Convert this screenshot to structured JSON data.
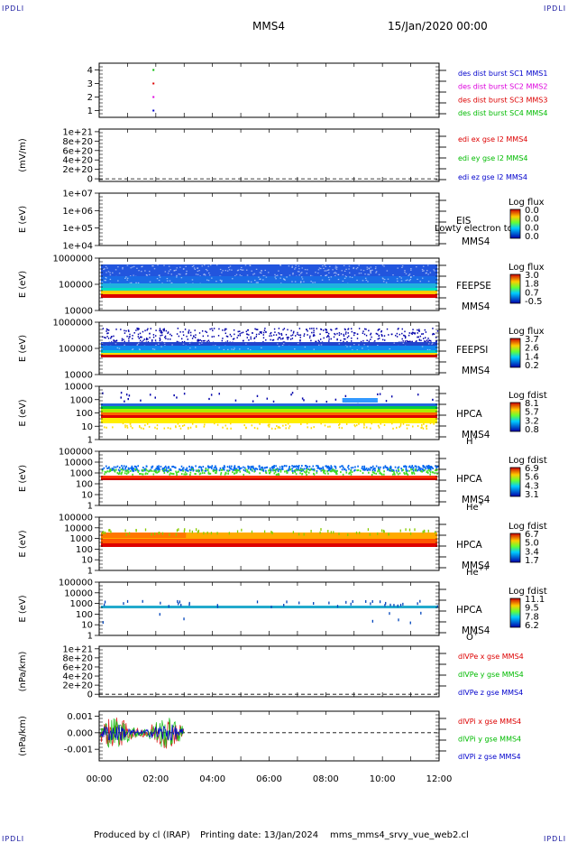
{
  "header": {
    "corner_label": "IPDLI",
    "spacecraft": "MMS4",
    "datetime": "15/Jan/2020 00:00"
  },
  "footer": {
    "produced_by": "Produced by cl (IRAP)",
    "printing_date": "Printing date: 13/Jan/2024",
    "file_name": "mms_mms4_srvy_vue_web2.cl"
  },
  "colors": {
    "red": "#dd0000",
    "magenta": "#dd00dd",
    "green": "#00bb00",
    "blue": "#0000cc"
  },
  "chart_data": [
    {
      "type": "scatter",
      "ylim": [
        0.5,
        4.5
      ],
      "yticks": [
        "1",
        "2",
        "3",
        "4"
      ],
      "series": [
        {
          "name": "des dist burst SC1 MMS1",
          "color": "#0000cc",
          "x": [
            "01:55"
          ],
          "y": [
            1
          ]
        },
        {
          "name": "des dist burst SC2 MMS2",
          "color": "#dd00dd",
          "x": [
            "01:55"
          ],
          "y": [
            2
          ]
        },
        {
          "name": "des dist burst SC3 MMS3",
          "color": "#dd0000",
          "x": [
            "01:55"
          ],
          "y": [
            3
          ]
        },
        {
          "name": "des dist burst SC4 MMS4",
          "color": "#00bb00",
          "x": [
            "01:55"
          ],
          "y": [
            4
          ]
        }
      ]
    },
    {
      "type": "line",
      "ylabel": "(mV/m)",
      "yticks": [
        "0",
        "2e+20",
        "4e+20",
        "6e+20",
        "8e+20",
        "1e+21"
      ],
      "zero_line": true,
      "series": [
        {
          "name": "edi ex gse l2 MMS4",
          "color": "#dd0000"
        },
        {
          "name": "edi ey gse l2 MMS4",
          "color": "#00bb00"
        },
        {
          "name": "edi ez gse l2 MMS4",
          "color": "#0000cc"
        }
      ]
    },
    {
      "type": "heatmap",
      "ylabel": "E (eV)",
      "yticks": [
        "1e+04",
        "1e+05",
        "1e+06",
        "1e+07"
      ],
      "scale": "log",
      "instrument": "EIS",
      "overlay_text": "Lowty electron to",
      "spacecraft": "MMS4",
      "colorbar_title": "Log flux",
      "colorbar_ticks": [
        "0.0",
        "0.0",
        "0.0",
        "0.0"
      ]
    },
    {
      "type": "heatmap",
      "ylabel": "E (eV)",
      "yticks": [
        "10000",
        "100000",
        "1000000"
      ],
      "scale": "log",
      "instrument": "FEEPSE",
      "spacecraft": "MMS4",
      "colorbar_title": "Log flux",
      "colorbar_ticks": [
        "3.0",
        "1.8",
        "0.7",
        "-0.5"
      ]
    },
    {
      "type": "heatmap",
      "ylabel": "E (eV)",
      "yticks": [
        "10000",
        "100000",
        "1000000"
      ],
      "scale": "log",
      "instrument": "FEEPSI",
      "spacecraft": "MMS4",
      "colorbar_title": "Log flux",
      "colorbar_ticks": [
        "3.7",
        "2.6",
        "1.4",
        "0.2"
      ]
    },
    {
      "type": "heatmap",
      "ylabel": "E (eV)",
      "yticks": [
        "1",
        "10",
        "100",
        "1000",
        "10000"
      ],
      "scale": "log",
      "instrument": "HPCA",
      "spacecraft": "MMS4",
      "species": "H",
      "species_sup": "+",
      "colorbar_title": "Log fdist",
      "colorbar_ticks": [
        "8.1",
        "5.7",
        "3.2",
        "0.8"
      ]
    },
    {
      "type": "heatmap",
      "ylabel": "E (eV)",
      "yticks": [
        "1",
        "10",
        "100",
        "1000",
        "10000",
        "100000"
      ],
      "scale": "log",
      "instrument": "HPCA",
      "spacecraft": "MMS4",
      "species": "He",
      "species_sup": "+",
      "colorbar_title": "Log fdist",
      "colorbar_ticks": [
        "6.9",
        "5.6",
        "4.3",
        "3.1"
      ]
    },
    {
      "type": "heatmap",
      "ylabel": "E (eV)",
      "yticks": [
        "1",
        "10",
        "100",
        "1000",
        "10000",
        "100000"
      ],
      "scale": "log",
      "instrument": "HPCA",
      "spacecraft": "MMS4",
      "species": "He",
      "species_sup": "++",
      "colorbar_title": "Log fdist",
      "colorbar_ticks": [
        "6.7",
        "5.0",
        "3.4",
        "1.7"
      ]
    },
    {
      "type": "heatmap",
      "ylabel": "E (eV)",
      "yticks": [
        "1",
        "10",
        "100",
        "1000",
        "10000",
        "100000"
      ],
      "scale": "log",
      "instrument": "HPCA",
      "spacecraft": "MMS4",
      "species": "O",
      "species_sup": "+",
      "colorbar_title": "Log fdist",
      "colorbar_ticks": [
        "11.1",
        "9.5",
        "7.8",
        "6.2"
      ]
    },
    {
      "type": "line",
      "ylabel": "(nPa/km)",
      "yticks": [
        "0",
        "2e+20",
        "4e+20",
        "6e+20",
        "8e+20",
        "1e+21"
      ],
      "zero_line": true,
      "series": [
        {
          "name": "dlVPe x gse MMS4",
          "color": "#dd0000"
        },
        {
          "name": "dlVPe y gse MMS4",
          "color": "#00bb00"
        },
        {
          "name": "dlVPe z gse MMS4",
          "color": "#0000cc"
        }
      ]
    },
    {
      "type": "line",
      "ylabel": "(nPa/km)",
      "yticks": [
        "-0.001",
        "0.000",
        "0.001"
      ],
      "ylim": [
        -0.0017,
        0.0013
      ],
      "zero_line": true,
      "data_span": [
        "00:00",
        "03:00"
      ],
      "series": [
        {
          "name": "dlVPi x gse MMS4",
          "color": "#dd0000"
        },
        {
          "name": "dlVPi y gse MMS4",
          "color": "#00bb00"
        },
        {
          "name": "dlVPi z gse MMS4",
          "color": "#0000cc"
        }
      ]
    }
  ],
  "xaxis": {
    "tick_labels": [
      "00:00",
      "02:00",
      "04:00",
      "06:00",
      "08:00",
      "10:00",
      "12:00"
    ]
  }
}
